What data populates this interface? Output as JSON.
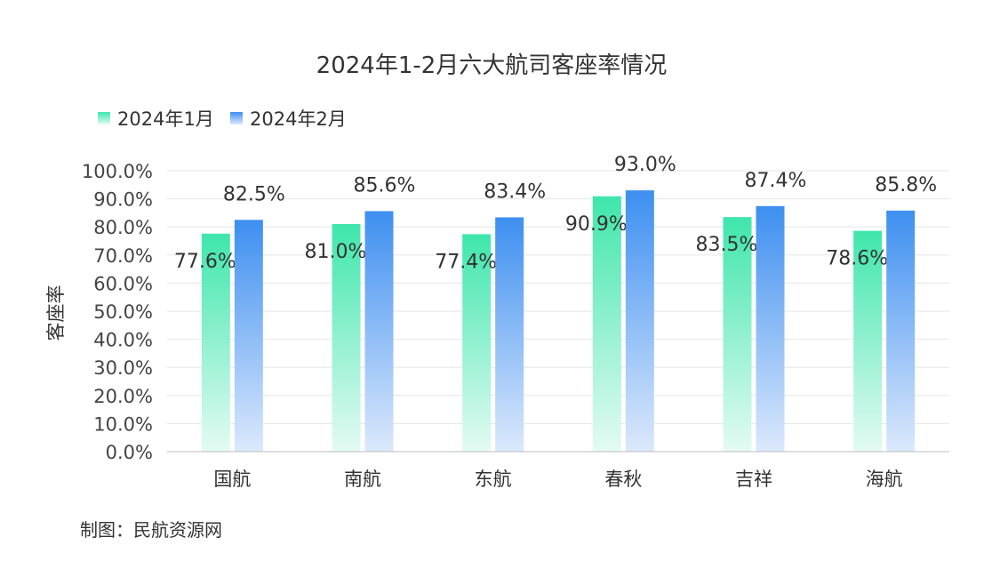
{
  "chart_data": {
    "type": "bar",
    "title": "2024年1-2月六大航司客座率情况",
    "ylabel": "客座率",
    "xlabel": "",
    "categories": [
      "国航",
      "南航",
      "东航",
      "春秋",
      "吉祥",
      "海航"
    ],
    "series": [
      {
        "name": "2024年1月",
        "values": [
          77.6,
          81.0,
          77.4,
          90.9,
          83.5,
          78.6
        ],
        "labels": [
          "77.6%",
          "81.0%",
          "77.4%",
          "90.9%",
          "83.5%",
          "78.6%"
        ],
        "color_top": "#3ee6ac",
        "color_bottom": "#e4fbf3"
      },
      {
        "name": "2024年2月",
        "values": [
          82.5,
          85.6,
          83.4,
          93.0,
          87.4,
          85.8
        ],
        "labels": [
          "82.5%",
          "85.6%",
          "83.4%",
          "93.0%",
          "87.4%",
          "85.8%"
        ],
        "color_top": "#3d8ff0",
        "color_bottom": "#dce9fc"
      }
    ],
    "ylim": [
      0,
      100
    ],
    "yticks": [
      0,
      10,
      20,
      30,
      40,
      50,
      60,
      70,
      80,
      90,
      100
    ],
    "ytick_labels": [
      "0.0%",
      "10.0%",
      "20.0%",
      "30.0%",
      "40.0%",
      "50.0%",
      "60.0%",
      "70.0%",
      "80.0%",
      "90.0%",
      "100.0%"
    ],
    "grid": true,
    "legend_position": "top-left"
  },
  "source": "制图：民航资源网"
}
